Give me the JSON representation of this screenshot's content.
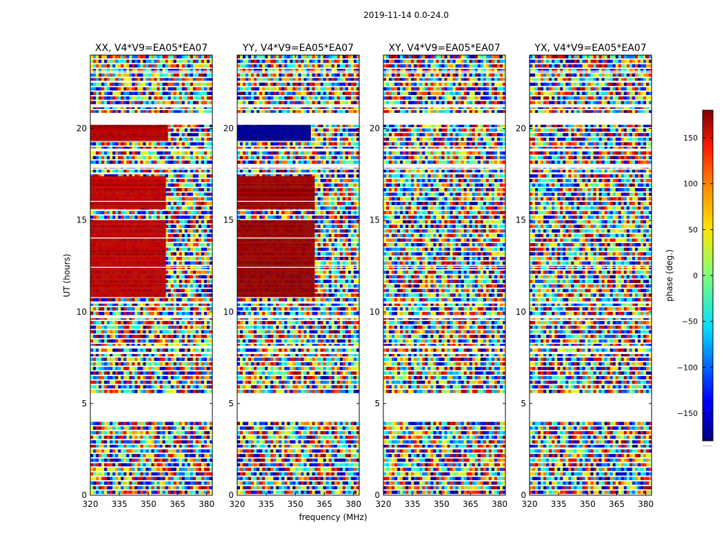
{
  "figure": {
    "suptitle": "2019-11-14 0.0-24.0"
  },
  "chart_data": {
    "type": "heatmap",
    "title": "2019-11-14 0.0-24.0",
    "xlabel": "frequency (MHz)",
    "ylabel": "UT (hours)",
    "xlim": [
      320,
      383
    ],
    "ylim": [
      0,
      24
    ],
    "xticks": [
      320,
      335,
      350,
      365,
      380
    ],
    "yticks": [
      0,
      5,
      10,
      15,
      20
    ],
    "colorbar": {
      "label": "phase (deg.)",
      "range": [
        -180,
        180
      ],
      "ticks": [
        150,
        100,
        50,
        0,
        -50,
        -100,
        -150
      ],
      "tick_labels": [
        "150",
        "100",
        "50",
        "0",
        "−50",
        "−100",
        "−150"
      ],
      "colormap": "jet",
      "footnote": "......"
    },
    "blank_rows_ut": [
      [
        0.5,
        0.55
      ],
      [
        1.75,
        1.8
      ],
      [
        2.55,
        2.6
      ],
      [
        3.0,
        3.05
      ],
      [
        3.5,
        3.55
      ],
      [
        4.05,
        5.5
      ],
      [
        7.7,
        7.8
      ],
      [
        8.05,
        8.15
      ],
      [
        9.65,
        9.75
      ],
      [
        10.45,
        10.55
      ],
      [
        12.4,
        12.45
      ],
      [
        14.0,
        14.05
      ],
      [
        16.0,
        16.05
      ],
      [
        17.55,
        17.6
      ],
      [
        17.85,
        18.0
      ],
      [
        18.8,
        18.9
      ],
      [
        19.3,
        19.32
      ],
      [
        20.2,
        20.85
      ],
      [
        21.15,
        21.25
      ],
      [
        22.5,
        22.6
      ],
      [
        23.1,
        23.15
      ]
    ],
    "panels": [
      {
        "name": "XX",
        "title": "XX, V4*V9=EA05*EA07",
        "show_xlabel": false
      },
      {
        "name": "YY",
        "title": "YY, V4*V9=EA05*EA07",
        "show_xlabel": true
      },
      {
        "name": "XY",
        "title": "XY, V4*V9=EA05*EA07",
        "show_xlabel": false
      },
      {
        "name": "YX",
        "title": "YX, V4*V9=EA05*EA07",
        "show_xlabel": false
      }
    ],
    "coherent_phase_blocks_deg": [
      {
        "panel": "XX",
        "ut": [
          19.3,
          20.2
        ],
        "freq": [
          320,
          360
        ],
        "phase": 165
      },
      {
        "panel": "XX",
        "ut": [
          10.8,
          15.0
        ],
        "freq": [
          320,
          359
        ],
        "phase": 160
      },
      {
        "panel": "XX",
        "ut": [
          15.6,
          17.4
        ],
        "freq": [
          320,
          359
        ],
        "phase": 158
      },
      {
        "panel": "YY",
        "ut": [
          19.3,
          20.2
        ],
        "freq": [
          320,
          358
        ],
        "phase": -175
      },
      {
        "panel": "YY",
        "ut": [
          10.8,
          15.0
        ],
        "freq": [
          320,
          360
        ],
        "phase": 172
      },
      {
        "panel": "YY",
        "ut": [
          15.6,
          17.4
        ],
        "freq": [
          320,
          360
        ],
        "phase": 170
      }
    ]
  }
}
